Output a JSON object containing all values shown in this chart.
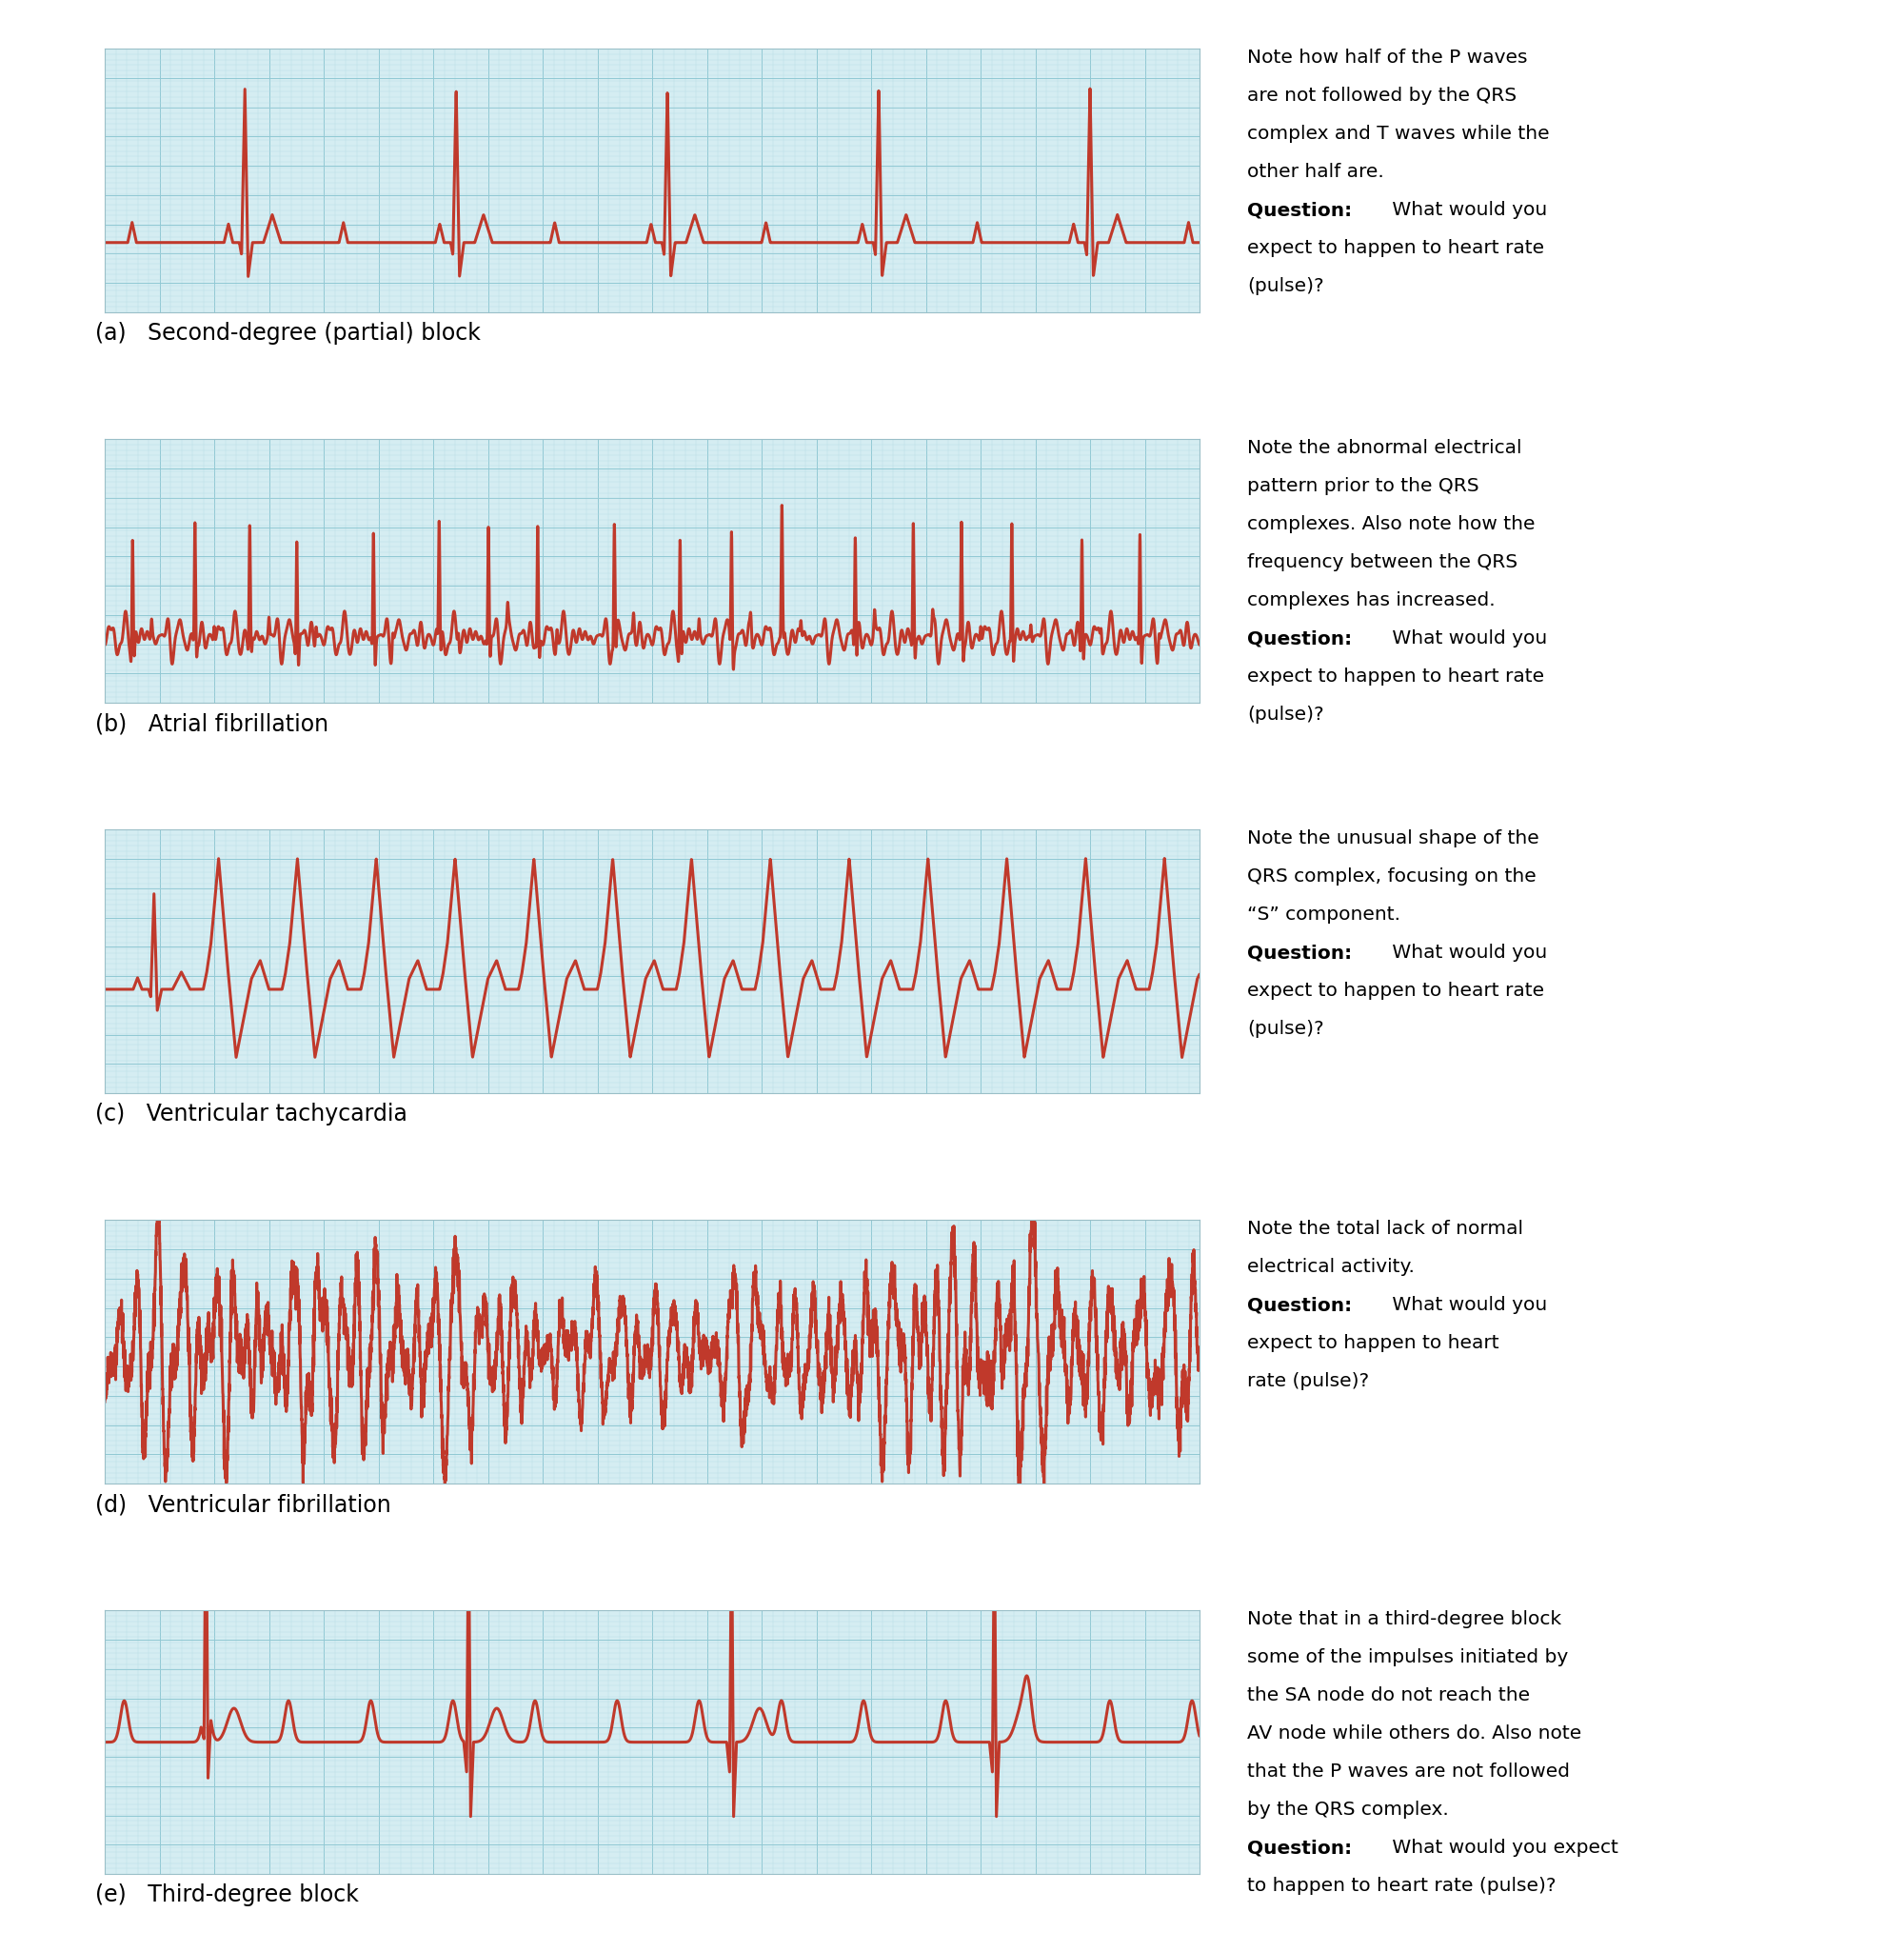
{
  "ecg_color": "#C0392B",
  "bg_color": "#D5EDF2",
  "grid_minor_color": "#B8DCE4",
  "grid_major_color": "#90C8D4",
  "line_width": 2.2,
  "label_fontsize": 17,
  "note_fontsize": 14.5,
  "labels": [
    "(a)   Second-degree (partial) block",
    "(b)   Atrial fibrillation",
    "(c)   Ventricular tachycardia",
    "(d)   Ventricular fibrillation",
    "(e)   Third-degree block"
  ],
  "notes": [
    "Note how half of the P waves\nare not followed by the QRS\ncomplex and T waves while the\nother half are.\nQuestion: What would you\nexpect to happen to heart rate\n(pulse)?",
    "Note the abnormal electrical\npattern prior to the QRS\ncomplexes. Also note how the\nfrequency between the QRS\ncomplexes has increased.\nQuestion: What would you\nexpect to happen to heart rate\n(pulse)?",
    "Note the unusual shape of the\nQRS complex, focusing on the\n“S” component.\nQuestion: What would you\nexpect to happen to heart rate\n(pulse)?",
    "Note the total lack of normal\nelectrical activity.\nQuestion: What would you\nexpect to happen to heart\nrate (pulse)?",
    "Note that in a third-degree block\nsome of the impulses initiated by\nthe SA node do not reach the\nAV node while others do. Also note\nthat the P waves are not followed\nby the QRS complex.\nQuestion: What would you expect\nto happen to heart rate (pulse)?"
  ]
}
